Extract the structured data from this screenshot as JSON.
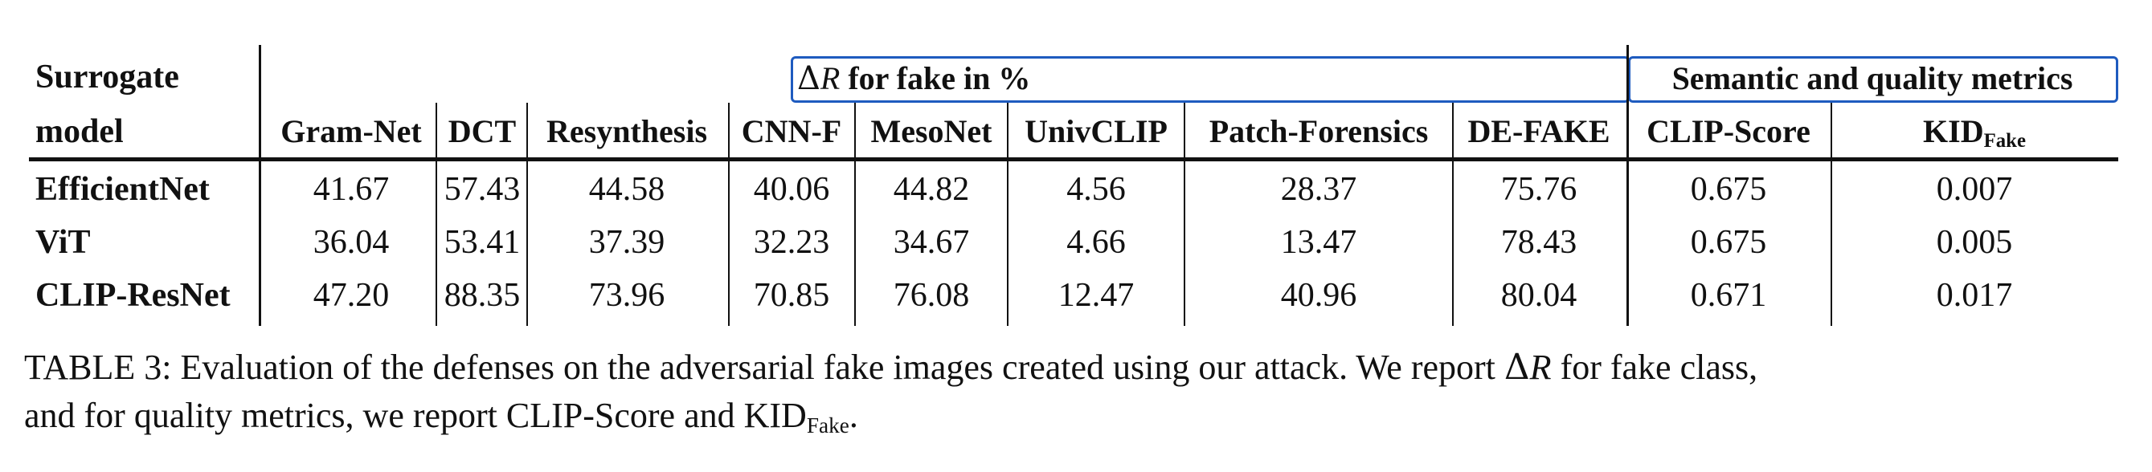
{
  "table": {
    "surrogate_header_line1": "Surrogate",
    "surrogate_header_line2": "model",
    "group_left": {
      "symbol": "Δ",
      "var": "R",
      "text": " for fake in %"
    },
    "group_right": "Semantic and quality metrics",
    "columns": [
      "Gram-Net",
      "DCT",
      "Resynthesis",
      "CNN-F",
      "MesoNet",
      "UnivCLIP",
      "Patch-Forensics",
      "DE-FAKE",
      "CLIP-Score"
    ],
    "kid_base": "KID",
    "kid_sub": "Fake",
    "rows": [
      {
        "label": "EfficientNet",
        "values": [
          "41.67",
          "57.43",
          "44.58",
          "40.06",
          "44.82",
          "4.56",
          "28.37",
          "75.76",
          "0.675",
          "0.007"
        ]
      },
      {
        "label": "ViT",
        "values": [
          "36.04",
          "53.41",
          "37.39",
          "32.23",
          "34.67",
          "4.66",
          "13.47",
          "78.43",
          "0.675",
          "0.005"
        ]
      },
      {
        "label": "CLIP-ResNet",
        "values": [
          "47.20",
          "88.35",
          "73.96",
          "70.85",
          "76.08",
          "12.47",
          "40.96",
          "80.04",
          "0.671",
          "0.017"
        ]
      }
    ]
  },
  "caption": {
    "line1_a": "TABLE 3: Evaluation of the defenses on the adversarial fake images created using our attack. We report ",
    "symbol": "Δ",
    "var": "R",
    "line1_b": " for fake class,",
    "line2_a": "and for quality metrics, we report CLIP-Score and KID",
    "line2_sub": "Fake",
    "line2_b": "."
  }
}
